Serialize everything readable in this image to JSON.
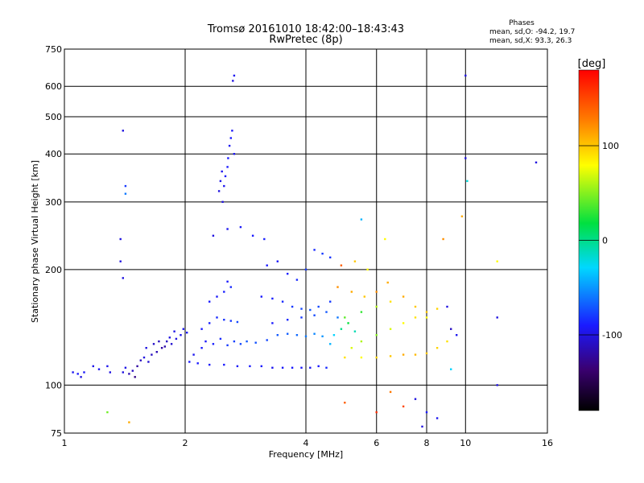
{
  "chart_data": {
    "type": "scatter",
    "title": "Tromsø 20161010 18:42:00–18:43:43",
    "subtitle": "RwPretec (8p)",
    "xlabel": "Frequency [MHz]",
    "ylabel": "Stationary phase Virtual Height [km]",
    "x_scale": "log2",
    "y_scale": "log",
    "xlim": [
      1,
      16
    ],
    "ylim": [
      75,
      750
    ],
    "x_ticks": [
      1,
      2,
      4,
      6,
      8,
      10,
      16
    ],
    "y_ticks": [
      75,
      100,
      200,
      300,
      400,
      500,
      600,
      750
    ],
    "grid": true,
    "stats": {
      "title": "Phases",
      "line1": "mean, sd,O: -94.2, 19.7",
      "line2": "mean, sd,X:  93.3, 26.3"
    },
    "colorbar": {
      "label": "[deg]",
      "range": [
        -180,
        180
      ],
      "ticks": [
        100,
        0,
        -100
      ],
      "colormap": "rainbow"
    },
    "series": [
      {
        "color_by": "phase_deg",
        "points": [
          [
            1.05,
            108,
            -95
          ],
          [
            1.08,
            107,
            -90
          ],
          [
            1.1,
            105,
            -100
          ],
          [
            1.12,
            108,
            -92
          ],
          [
            1.18,
            112,
            -98
          ],
          [
            1.22,
            110,
            -95
          ],
          [
            1.28,
            112,
            -96
          ],
          [
            1.3,
            108,
            -100
          ],
          [
            1.4,
            108,
            -100
          ],
          [
            1.42,
            111,
            -98
          ],
          [
            1.45,
            107,
            -115
          ],
          [
            1.48,
            109,
            -110
          ],
          [
            1.5,
            105,
            -130
          ],
          [
            1.52,
            112,
            -120
          ],
          [
            1.55,
            116,
            -110
          ],
          [
            1.58,
            118,
            -100
          ],
          [
            1.62,
            115,
            -105
          ],
          [
            1.65,
            120,
            -110
          ],
          [
            1.7,
            122,
            -115
          ],
          [
            1.75,
            125,
            -120
          ],
          [
            1.8,
            130,
            -110
          ],
          [
            1.85,
            128,
            -105
          ],
          [
            1.9,
            132,
            -100
          ],
          [
            1.95,
            135,
            -95
          ],
          [
            1.6,
            125,
            -100
          ],
          [
            1.67,
            128,
            -108
          ],
          [
            1.72,
            130,
            -112
          ],
          [
            1.78,
            126,
            -118
          ],
          [
            1.83,
            133,
            -100
          ],
          [
            1.88,
            138,
            -98
          ],
          [
            1.98,
            140,
            -95
          ],
          [
            2.02,
            137,
            -92
          ],
          [
            2.05,
            115,
            -90
          ],
          [
            2.15,
            114,
            -90
          ],
          [
            2.3,
            113,
            -92
          ],
          [
            2.5,
            113,
            -90
          ],
          [
            2.7,
            112,
            -92
          ],
          [
            2.9,
            112,
            -90
          ],
          [
            3.1,
            112,
            -90
          ],
          [
            3.3,
            111,
            -95
          ],
          [
            3.5,
            111,
            -92
          ],
          [
            3.7,
            111,
            -90
          ],
          [
            3.9,
            111,
            -93
          ],
          [
            4.1,
            111,
            -95
          ],
          [
            4.3,
            112,
            -90
          ],
          [
            4.5,
            111,
            -85
          ],
          [
            2.1,
            120,
            -95
          ],
          [
            2.2,
            125,
            -90
          ],
          [
            2.25,
            130,
            -92
          ],
          [
            2.35,
            128,
            -88
          ],
          [
            2.45,
            132,
            -85
          ],
          [
            2.55,
            127,
            -80
          ],
          [
            2.65,
            130,
            -78
          ],
          [
            2.75,
            128,
            -75
          ],
          [
            2.85,
            130,
            -70
          ],
          [
            3.0,
            129,
            -72
          ],
          [
            3.2,
            131,
            -75
          ],
          [
            3.4,
            135,
            -70
          ],
          [
            3.6,
            136,
            -68
          ],
          [
            3.8,
            135,
            -65
          ],
          [
            4.0,
            134,
            -60
          ],
          [
            4.2,
            136,
            -55
          ],
          [
            4.4,
            134,
            -50
          ],
          [
            2.2,
            140,
            -90
          ],
          [
            2.3,
            145,
            -88
          ],
          [
            2.4,
            150,
            -85
          ],
          [
            2.5,
            148,
            -82
          ],
          [
            2.6,
            147,
            -80
          ],
          [
            2.7,
            146,
            -75
          ],
          [
            2.3,
            165,
            -90
          ],
          [
            2.4,
            170,
            -92
          ],
          [
            2.5,
            175,
            -88
          ],
          [
            2.6,
            180,
            -85
          ],
          [
            2.55,
            186,
            -90
          ],
          [
            2.35,
            245,
            -100
          ],
          [
            2.55,
            255,
            -95
          ],
          [
            2.75,
            258,
            -92
          ],
          [
            2.95,
            245,
            -90
          ],
          [
            3.15,
            240,
            -88
          ],
          [
            3.1,
            170,
            -90
          ],
          [
            3.3,
            168,
            -88
          ],
          [
            3.5,
            165,
            -85
          ],
          [
            3.7,
            160,
            -80
          ],
          [
            3.9,
            158,
            -75
          ],
          [
            4.1,
            157,
            -70
          ],
          [
            4.3,
            160,
            -75
          ],
          [
            4.6,
            165,
            -80
          ],
          [
            3.2,
            205,
            -90
          ],
          [
            3.4,
            210,
            -92
          ],
          [
            3.6,
            195,
            -88
          ],
          [
            3.8,
            188,
            -85
          ],
          [
            4.0,
            200,
            -80
          ],
          [
            4.2,
            225,
            -85
          ],
          [
            4.4,
            220,
            -80
          ],
          [
            4.6,
            215,
            -82
          ],
          [
            3.3,
            145,
            -90
          ],
          [
            3.6,
            148,
            -85
          ],
          [
            3.9,
            150,
            -80
          ],
          [
            4.2,
            152,
            -75
          ],
          [
            4.5,
            155,
            -70
          ],
          [
            4.8,
            150,
            -60
          ],
          [
            2.43,
            320,
            -100
          ],
          [
            2.45,
            340,
            -98
          ],
          [
            2.47,
            360,
            -96
          ],
          [
            2.5,
            330,
            -95
          ],
          [
            2.52,
            350,
            -92
          ],
          [
            2.55,
            370,
            -90
          ],
          [
            2.48,
            300,
            -100
          ],
          [
            2.58,
            420,
            -95
          ],
          [
            2.6,
            440,
            -90
          ],
          [
            2.62,
            460,
            -92
          ],
          [
            2.56,
            390,
            -90
          ],
          [
            2.65,
            400,
            -95
          ],
          [
            2.63,
            620,
            -100
          ],
          [
            2.65,
            640,
            -95
          ],
          [
            1.4,
            460,
            -100
          ],
          [
            1.42,
            330,
            -80
          ],
          [
            1.42,
            315,
            -60
          ],
          [
            1.38,
            240,
            -100
          ],
          [
            1.38,
            210,
            -100
          ],
          [
            1.4,
            190,
            -100
          ],
          [
            1.28,
            85,
            45
          ],
          [
            1.45,
            80,
            110
          ],
          [
            5.0,
            118,
            90
          ],
          [
            5.5,
            118,
            80
          ],
          [
            6.0,
            118,
            95
          ],
          [
            6.5,
            119,
            100
          ],
          [
            7.0,
            120,
            110
          ],
          [
            7.5,
            120,
            105
          ],
          [
            8.0,
            121,
            100
          ],
          [
            8.5,
            125,
            95
          ],
          [
            9.0,
            130,
            90
          ],
          [
            5.2,
            125,
            70
          ],
          [
            5.5,
            130,
            60
          ],
          [
            6.0,
            135,
            50
          ],
          [
            6.5,
            140,
            70
          ],
          [
            7.0,
            145,
            80
          ],
          [
            7.5,
            150,
            90
          ],
          [
            8.0,
            155,
            100
          ],
          [
            8.5,
            158,
            95
          ],
          [
            5.0,
            150,
            40
          ],
          [
            5.5,
            155,
            30
          ],
          [
            6.0,
            160,
            60
          ],
          [
            6.5,
            165,
            90
          ],
          [
            7.0,
            170,
            110
          ],
          [
            7.5,
            160,
            100
          ],
          [
            8.0,
            150,
            80
          ],
          [
            4.8,
            180,
            120
          ],
          [
            5.2,
            175,
            110
          ],
          [
            5.6,
            170,
            100
          ],
          [
            6.0,
            175,
            120
          ],
          [
            6.4,
            185,
            110
          ],
          [
            4.9,
            205,
            140
          ],
          [
            5.3,
            210,
            100
          ],
          [
            5.7,
            200,
            80
          ],
          [
            4.7,
            135,
            -30
          ],
          [
            4.9,
            140,
            0
          ],
          [
            5.1,
            145,
            20
          ],
          [
            5.3,
            138,
            -10
          ],
          [
            4.6,
            128,
            -40
          ],
          [
            5.0,
            90,
            140
          ],
          [
            6.0,
            85,
            160
          ],
          [
            7.0,
            88,
            150
          ],
          [
            7.5,
            92,
            -100
          ],
          [
            8.0,
            85,
            -90
          ],
          [
            8.5,
            82,
            -95
          ],
          [
            6.5,
            96,
            130
          ],
          [
            7.8,
            78,
            -100
          ],
          [
            9.0,
            160,
            -100
          ],
          [
            9.2,
            140,
            -110
          ],
          [
            9.5,
            135,
            -95
          ],
          [
            9.8,
            275,
            110
          ],
          [
            10.0,
            640,
            -100
          ],
          [
            10.0,
            390,
            -100
          ],
          [
            10.1,
            340,
            -20
          ],
          [
            15.0,
            380,
            -100
          ],
          [
            12.0,
            210,
            80
          ],
          [
            12.0,
            150,
            -100
          ],
          [
            12.0,
            100,
            -100
          ],
          [
            9.2,
            110,
            -30
          ],
          [
            5.5,
            270,
            -40
          ],
          [
            6.3,
            240,
            80
          ],
          [
            8.8,
            240,
            120
          ]
        ]
      }
    ]
  }
}
